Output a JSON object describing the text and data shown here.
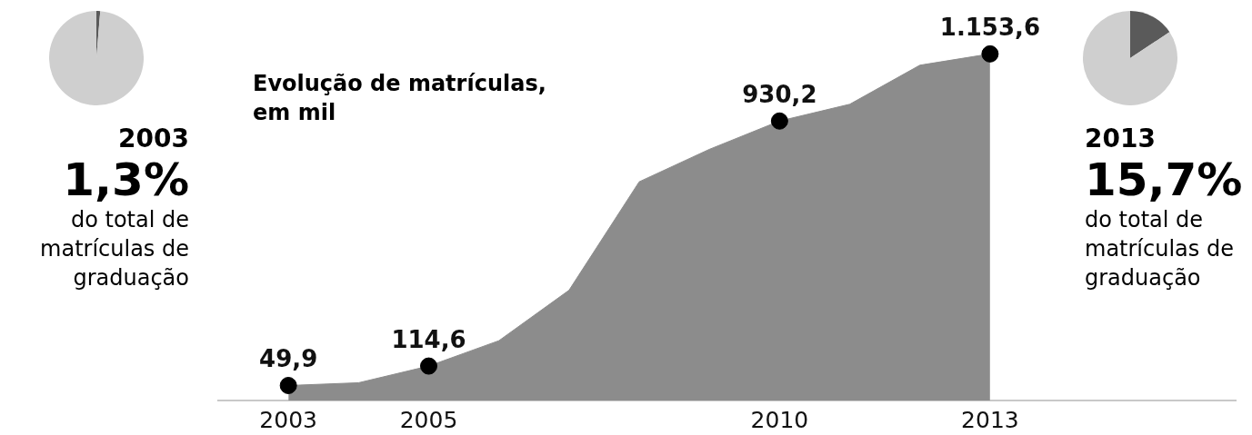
{
  "chart_data": [
    {
      "type": "pie",
      "title": "2003",
      "categories": [
        null,
        null
      ],
      "values": [
        1.3,
        98.7
      ],
      "colors": [
        "#5a5a5a",
        "#cfcfcf"
      ],
      "annotations": [
        "1,3%",
        "do total de matrículas de graduação"
      ]
    },
    {
      "type": "area",
      "title": "Evolução de matrículas, em mil",
      "x": [
        2003,
        2004,
        2005,
        2006,
        2007,
        2008,
        2009,
        2010,
        2011,
        2012,
        2013
      ],
      "values": [
        49.9,
        59,
        114.6,
        199,
        367,
        728,
        836,
        930.2,
        986,
        1116,
        1153.6
      ],
      "value_labels": [
        "49,9",
        null,
        "114,6",
        null,
        null,
        null,
        null,
        "930,2",
        null,
        null,
        "1.153,6"
      ],
      "color": "#8c8c8c",
      "xlim": [
        2002,
        2016.5
      ],
      "xticks": [
        2003,
        2005,
        2010,
        2013
      ],
      "tick_labels": "x",
      "grid": false
    },
    {
      "type": "pie",
      "title": "2013",
      "categories": [
        null,
        null
      ],
      "values": [
        15.7,
        84.3
      ],
      "colors": [
        "#5a5a5a",
        "#cfcfcf"
      ],
      "annotations": [
        "15,7%",
        "do total de matrículas de graduação"
      ]
    }
  ]
}
